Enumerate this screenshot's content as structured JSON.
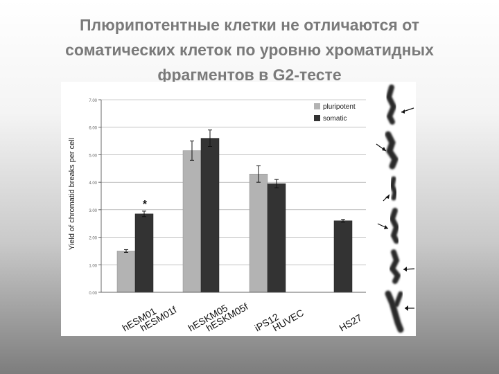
{
  "slide": {
    "title_lines": [
      "Плюрипотентные клетки не отличаются от",
      "соматических клеток по уровню хроматидных",
      "фрагментов в G2-тесте"
    ]
  },
  "chart_data": {
    "type": "bar",
    "ylabel": "Yield of chromatid breaks per cell",
    "ylim": [
      0,
      7
    ],
    "yticks": [
      "0.00",
      "1.00",
      "2.00",
      "3.00",
      "4.00",
      "5.00",
      "6.00",
      "7.00"
    ],
    "legend": {
      "position": "top-right",
      "entries": [
        "pluripotent",
        "somatic"
      ]
    },
    "colors": {
      "pluripotent": "#b3b3b3",
      "somatic": "#333333"
    },
    "grid": true,
    "categories": [
      "hESM01",
      "hESM01f",
      "hESKM05",
      "hESKM05f",
      "iPS12",
      "HUVEC",
      "HS27"
    ],
    "bars": [
      {
        "label": "hESM01",
        "type": "pluripotent",
        "value": 1.5,
        "err": 0.05
      },
      {
        "label": "hESM01f",
        "type": "somatic",
        "value": 2.85,
        "err": 0.1,
        "annotation": "*"
      },
      {
        "label": "hESKM05",
        "type": "pluripotent",
        "value": 5.15,
        "err": 0.35
      },
      {
        "label": "hESKM05f",
        "type": "somatic",
        "value": 5.6,
        "err": 0.3
      },
      {
        "label": "iPS12",
        "type": "pluripotent",
        "value": 4.3,
        "err": 0.3
      },
      {
        "label": "HUVEC",
        "type": "somatic",
        "value": 3.95,
        "err": 0.15
      },
      {
        "label": "HS27",
        "type": "somatic",
        "value": 2.6,
        "err": 0.05
      }
    ]
  }
}
